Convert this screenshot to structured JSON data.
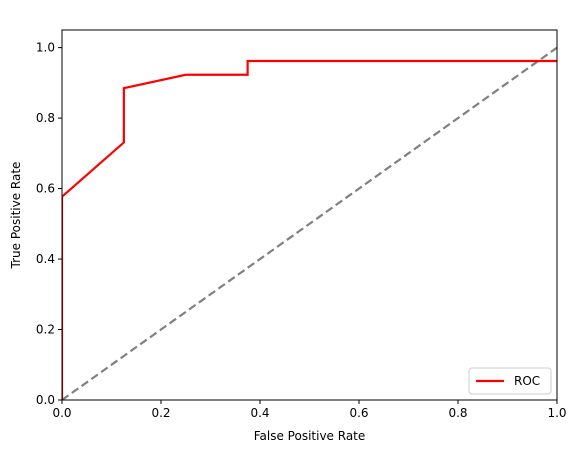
{
  "chart_data": {
    "type": "line",
    "title": "",
    "xlabel": "False Positive Rate",
    "ylabel": "True Positive Rate",
    "xlim": [
      0,
      1
    ],
    "ylim": [
      0,
      1.05
    ],
    "xticks": [
      0.0,
      0.2,
      0.4,
      0.6,
      0.8,
      1.0
    ],
    "xtick_labels": [
      "0.0",
      "0.2",
      "0.4",
      "0.6",
      "0.8",
      "1.0"
    ],
    "yticks": [
      0.0,
      0.2,
      0.4,
      0.6,
      0.8,
      1.0
    ],
    "ytick_labels": [
      "0.0",
      "0.2",
      "0.4",
      "0.6",
      "0.8",
      "1.0"
    ],
    "grid": false,
    "legend_position": "lower-right",
    "series": [
      {
        "name": "ROC",
        "color": "#ff0000",
        "style": "solid",
        "x": [
          0.0,
          0.0,
          0.0,
          0.125,
          0.125,
          0.25,
          0.375,
          0.375,
          1.0
        ],
        "y": [
          0.0,
          0.577,
          0.577,
          0.731,
          0.885,
          0.923,
          0.923,
          0.962,
          0.962
        ]
      },
      {
        "name": "",
        "color": "#808080",
        "style": "dashed",
        "x": [
          0.0,
          1.0
        ],
        "y": [
          0.0,
          1.0
        ]
      }
    ]
  }
}
